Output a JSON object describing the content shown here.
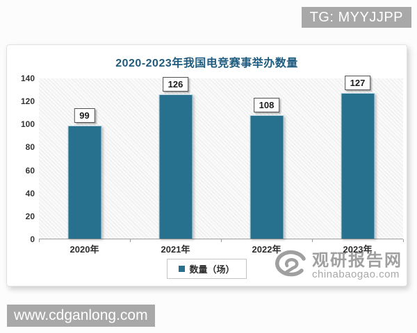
{
  "page": {
    "top_badge": "TG: MYYJJPP",
    "bottom_badge": "www.cdganlong.com"
  },
  "watermark": {
    "name": "观研报告网",
    "domain": "chinabaogao.com",
    "color": "#9a9a9a"
  },
  "colors": {
    "bar": "#27718f",
    "title": "#1e5b7e",
    "badge_bg": "#a8a8a8"
  },
  "chart_data": {
    "type": "bar",
    "title": "2020-2023年我国电竞赛事举办数量",
    "categories": [
      "2020年",
      "2021年",
      "2022年",
      "2023年"
    ],
    "values": [
      99,
      126,
      108,
      127
    ],
    "legend": "数量（场）",
    "legend_position": "bottom",
    "xlabel": "",
    "ylabel": "",
    "ylim": [
      0,
      140
    ],
    "ytick_step": 20,
    "yticks": [
      0,
      20,
      40,
      60,
      80,
      100,
      120,
      140
    ],
    "grid": false,
    "plot_background": "diagonal-hatch"
  }
}
